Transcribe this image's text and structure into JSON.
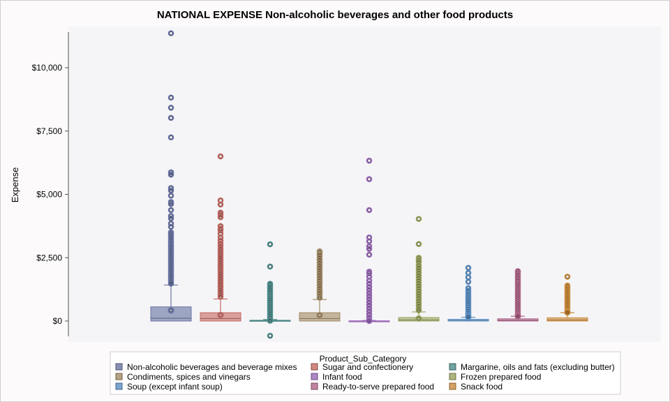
{
  "chart_data": {
    "type": "boxplot",
    "title": "NATIONAL EXPENSE Non-alcoholic beverages and other food products",
    "ylabel": "Expense",
    "xlabel": "",
    "ylim": [
      -600,
      11400
    ],
    "yticks": [
      {
        "value": 0,
        "label": "$0"
      },
      {
        "value": 2500,
        "label": "$2,500"
      },
      {
        "value": 5000,
        "label": "$5,000"
      },
      {
        "value": 7500,
        "label": "$7,500"
      },
      {
        "value": 10000,
        "label": "$10,000"
      }
    ],
    "grid": false,
    "legend": {
      "title": "Product_Sub_Category",
      "position": "bottom"
    },
    "series": [
      {
        "name": "Non-alcoholic beverages and beverage mixes",
        "color": "#6a75a3",
        "min": 0,
        "q1": 0,
        "median": 110,
        "q3": 560,
        "whisker_high": 1420,
        "mean": 420,
        "outliers": [
          11360,
          8820,
          8420,
          8020,
          7250,
          5870,
          5780,
          5250,
          5150,
          4950,
          4700,
          4620,
          4380,
          4150,
          4050,
          3850,
          3720,
          3500,
          3450,
          3380,
          3300,
          3220,
          3150,
          3080,
          3010,
          2950,
          2880,
          2810,
          2740,
          2670,
          2600,
          2530,
          2460,
          2390,
          2320,
          2250,
          2180,
          2110,
          2040,
          1970,
          1900,
          1830,
          1760,
          1690,
          1620,
          1550,
          1480
        ]
      },
      {
        "name": "Sugar and confectionery",
        "color": "#c36a63",
        "min": 0,
        "q1": 0,
        "median": 100,
        "q3": 330,
        "whisker_high": 870,
        "mean": 240,
        "outliers": [
          6500,
          4760,
          4600,
          4280,
          4200,
          4100,
          3750,
          3650,
          3580,
          3450,
          3300,
          3180,
          3060,
          2950,
          2850,
          2760,
          2670,
          2580,
          2490,
          2400,
          2310,
          2220,
          2130,
          2040,
          1950,
          1860,
          1770,
          1680,
          1590,
          1500,
          1410,
          1320,
          1230,
          1140,
          1050,
          960
        ]
      },
      {
        "name": "Margarine, oils and fats (excluding butter)",
        "color": "#4f8c8c",
        "min": 0,
        "q1": 0,
        "median": 10,
        "q3": 30,
        "whisker_high": 60,
        "mean": 20,
        "outliers": [
          3030,
          2150,
          1470,
          1400,
          1320,
          1240,
          1160,
          1080,
          1000,
          920,
          840,
          760,
          680,
          600,
          520,
          440,
          360,
          280,
          200,
          130,
          -580
        ]
      },
      {
        "name": "Condiments, spices and vinegars",
        "color": "#a28b66",
        "min": 0,
        "q1": 0,
        "median": 100,
        "q3": 330,
        "whisker_high": 850,
        "mean": 230,
        "outliers": [
          2750,
          2680,
          2600,
          2500,
          2400,
          2300,
          2200,
          2100,
          2000,
          1900,
          1800,
          1700,
          1600,
          1500,
          1400,
          1300,
          1200,
          1100,
          1000,
          920
        ]
      },
      {
        "name": "Infant food",
        "color": "#9a69b8",
        "min": 0,
        "q1": 0,
        "median": 0,
        "q3": 10,
        "whisker_high": 20,
        "mean": 10,
        "outliers": [
          6330,
          5600,
          4380,
          3300,
          3150,
          2950,
          2850,
          2620,
          1950,
          1880,
          1750,
          1600,
          1480,
          1350,
          1230,
          1110,
          990,
          870,
          750,
          630,
          510,
          390,
          270,
          150,
          60
        ]
      },
      {
        "name": "Frozen prepared food",
        "color": "#9aa35e",
        "min": 0,
        "q1": 0,
        "median": 40,
        "q3": 140,
        "whisker_high": 360,
        "mean": 100,
        "outliers": [
          4030,
          3040,
          2500,
          2420,
          2330,
          2200,
          2100,
          2000,
          1900,
          1800,
          1700,
          1600,
          1500,
          1400,
          1300,
          1200,
          1100,
          1000,
          900,
          800,
          700,
          600,
          500,
          420
        ]
      },
      {
        "name": "Soup (except infant soup)",
        "color": "#5b8fc4",
        "min": 0,
        "q1": 0,
        "median": 20,
        "q3": 70,
        "whisker_high": 150,
        "mean": 160,
        "outliers": [
          2100,
          1900,
          1730,
          1550,
          1300,
          1200,
          1120,
          1040,
          960,
          880,
          800,
          720,
          640,
          560,
          480,
          400,
          330,
          260,
          200
        ]
      },
      {
        "name": "Ready-to-serve prepared food",
        "color": "#b0668a",
        "min": 0,
        "q1": 0,
        "median": 30,
        "q3": 90,
        "whisker_high": 190,
        "mean": 190,
        "outliers": [
          1970,
          1900,
          1820,
          1740,
          1660,
          1580,
          1500,
          1420,
          1340,
          1260,
          1180,
          1100,
          1020,
          940,
          860,
          780,
          700,
          620,
          540,
          460,
          380,
          300,
          240
        ]
      },
      {
        "name": "Snack food",
        "color": "#c98a3c",
        "min": 0,
        "q1": 0,
        "median": 40,
        "q3": 130,
        "whisker_high": 330,
        "mean": 340,
        "outliers": [
          1750,
          1400,
          1330,
          1260,
          1190,
          1120,
          1050,
          980,
          910,
          840,
          770,
          700,
          630,
          560,
          490,
          420,
          380
        ]
      }
    ]
  }
}
